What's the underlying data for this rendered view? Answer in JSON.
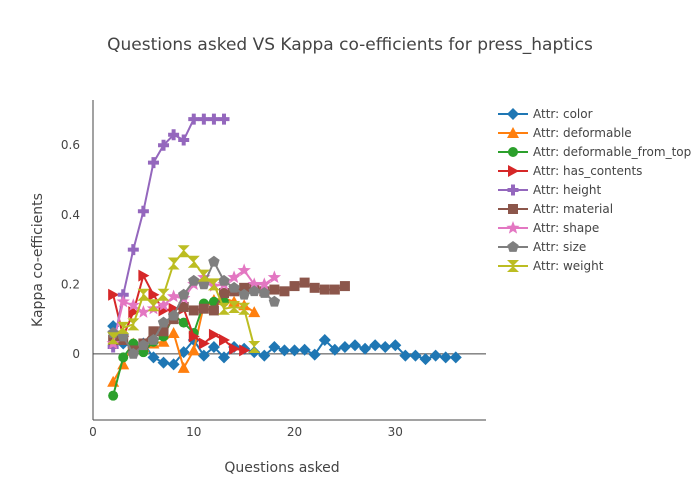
{
  "chart_data": {
    "type": "line",
    "title": "Questions asked VS Kappa co-efficients for press_haptics",
    "xlabel": "Questions asked",
    "ylabel": "Kappa co-efficients",
    "xlim": [
      0,
      39
    ],
    "ylim": [
      -0.19,
      0.73
    ],
    "xticks": [
      0,
      10,
      20,
      30
    ],
    "yticks": [
      0,
      0.2,
      0.4,
      0.6
    ],
    "ytick_labels": [
      "0",
      "0.2",
      "0.4",
      "0.6"
    ],
    "grid": false,
    "legend_position": "right",
    "series": [
      {
        "name": "Attr: color",
        "color": "#1f77b4",
        "marker": "diamond",
        "x": [
          2,
          3,
          4,
          5,
          6,
          7,
          8,
          9,
          10,
          11,
          12,
          13,
          14,
          15,
          16,
          17,
          18,
          19,
          20,
          21,
          22,
          23,
          24,
          25,
          26,
          27,
          28,
          29,
          30,
          31,
          32,
          33,
          34,
          35,
          36
        ],
        "y": [
          0.08,
          0.03,
          0.02,
          0.03,
          -0.01,
          -0.025,
          -0.03,
          0.005,
          0.04,
          -0.005,
          0.02,
          -0.01,
          0.02,
          0.015,
          0.005,
          -0.005,
          0.02,
          0.01,
          0.01,
          0.012,
          -0.002,
          0.04,
          0.012,
          0.02,
          0.025,
          0.015,
          0.025,
          0.02,
          0.025,
          -0.005,
          -0.005,
          -0.015,
          -0.005,
          -0.01,
          -0.01
        ]
      },
      {
        "name": "Attr: deformable",
        "color": "#ff7f0e",
        "marker": "triangle-up",
        "x": [
          2,
          3,
          4,
          5,
          6,
          7,
          8,
          9,
          10,
          11,
          12,
          13,
          14,
          15,
          16
        ],
        "y": [
          -0.08,
          -0.03,
          0.03,
          0.02,
          0.03,
          0.035,
          0.06,
          -0.04,
          0.01,
          0.14,
          0.155,
          0.16,
          0.15,
          0.14,
          0.12
        ]
      },
      {
        "name": "Attr: deformable_from_top",
        "color": "#2ca02c",
        "marker": "circle",
        "x": [
          2,
          3,
          4,
          5,
          6,
          7,
          8,
          9,
          10,
          11,
          12,
          13
        ],
        "y": [
          -0.12,
          -0.01,
          0.03,
          0.005,
          0.035,
          0.05,
          0.11,
          0.09,
          0.06,
          0.145,
          0.15,
          0.15
        ]
      },
      {
        "name": "Attr: has_contents",
        "color": "#d62728",
        "marker": "triangle-right",
        "x": [
          2,
          3,
          4,
          5,
          6,
          7,
          8,
          9,
          10,
          11,
          12,
          13,
          14,
          15
        ],
        "y": [
          0.17,
          0.05,
          0.12,
          0.225,
          0.17,
          0.125,
          0.13,
          0.13,
          0.05,
          0.03,
          0.055,
          0.04,
          0.015,
          0.01
        ]
      },
      {
        "name": "Attr: height",
        "color": "#9467bd",
        "marker": "cross",
        "x": [
          2,
          3,
          4,
          5,
          6,
          7,
          8,
          9,
          10,
          11,
          12,
          13
        ],
        "y": [
          0.02,
          0.17,
          0.3,
          0.41,
          0.55,
          0.6,
          0.63,
          0.615,
          0.675,
          0.675,
          0.675,
          0.675
        ]
      },
      {
        "name": "Attr: material",
        "color": "#8c564b",
        "marker": "square",
        "x": [
          2,
          3,
          4,
          5,
          6,
          7,
          8,
          9,
          10,
          11,
          12,
          13,
          14,
          15,
          16,
          17,
          18,
          19,
          20,
          21,
          22,
          23,
          24,
          25
        ],
        "y": [
          0.04,
          0.04,
          0.01,
          0.03,
          0.065,
          0.065,
          0.1,
          0.135,
          0.125,
          0.13,
          0.125,
          0.175,
          0.18,
          0.19,
          0.19,
          0.18,
          0.185,
          0.18,
          0.195,
          0.205,
          0.19,
          0.185,
          0.185,
          0.195
        ]
      },
      {
        "name": "Attr: shape",
        "color": "#e377c2",
        "marker": "star",
        "x": [
          2,
          3,
          4,
          5,
          6,
          7,
          8,
          9,
          10,
          11,
          12,
          13,
          14,
          15,
          16,
          17,
          18
        ],
        "y": [
          0.03,
          0.15,
          0.14,
          0.12,
          0.13,
          0.14,
          0.165,
          0.16,
          0.2,
          0.22,
          0.195,
          0.2,
          0.22,
          0.24,
          0.2,
          0.2,
          0.22
        ]
      },
      {
        "name": "Attr: size",
        "color": "#7f7f7f",
        "marker": "pentagon",
        "x": [
          2,
          3,
          4,
          5,
          6,
          7,
          8,
          9,
          10,
          11,
          12,
          13,
          14,
          15,
          16,
          17,
          18
        ],
        "y": [
          0.06,
          0.05,
          0.0,
          0.025,
          0.04,
          0.09,
          0.11,
          0.17,
          0.21,
          0.2,
          0.265,
          0.21,
          0.19,
          0.17,
          0.18,
          0.175,
          0.15
        ]
      },
      {
        "name": "Attr: weight",
        "color": "#bcbd22",
        "marker": "hourglass",
        "x": [
          2,
          3,
          4,
          5,
          6,
          7,
          8,
          9,
          10,
          11,
          12,
          13,
          14,
          15,
          16
        ],
        "y": [
          0.045,
          0.075,
          0.085,
          0.17,
          0.14,
          0.17,
          0.26,
          0.295,
          0.265,
          0.225,
          0.2,
          0.13,
          0.135,
          0.13,
          0.02
        ]
      }
    ]
  }
}
